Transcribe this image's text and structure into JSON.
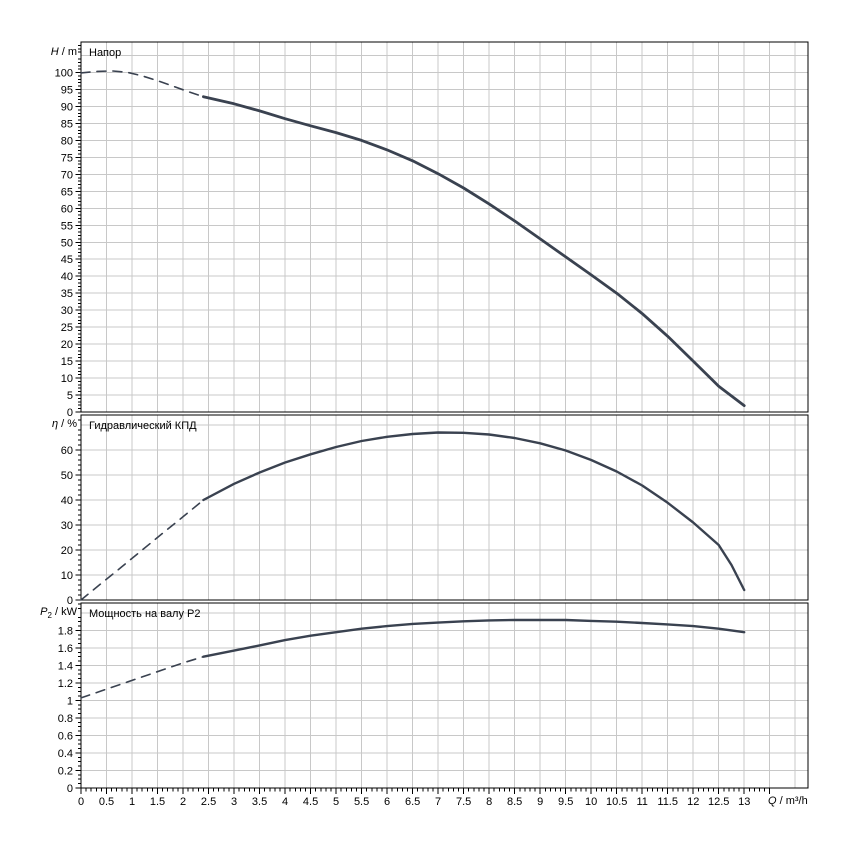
{
  "colors": {
    "background": "#ffffff",
    "curve": "#3a4250",
    "grid": "#c8c8c8",
    "axis": "#000000",
    "text": "#000000"
  },
  "chart_data": {
    "type": "line",
    "x_axis": {
      "label": "Q / m³/h",
      "label_parts": {
        "symbol": "Q",
        "rest": " / m³/h"
      },
      "xlim": [
        0,
        14.25
      ],
      "tick_step": 0.5,
      "minor_step": 0.1,
      "grid_step": 0.5,
      "tick_labels": [
        "0",
        "0.5",
        "1",
        "1.5",
        "2",
        "2.5",
        "3",
        "3.5",
        "4",
        "4.5",
        "5",
        "5.5",
        "6",
        "6.5",
        "7",
        "7.5",
        "8",
        "8.5",
        "9",
        "9.5",
        "10",
        "10.5",
        "11",
        "11.5",
        "12",
        "12.5",
        "13"
      ]
    },
    "panels": [
      {
        "id": "head",
        "title": "Напор",
        "y_axis": {
          "label": "H / m",
          "label_parts": {
            "symbol": "H",
            "rest": " / m"
          },
          "ylim": [
            0,
            109
          ],
          "tick_step": 5,
          "minor_step": 1,
          "tick_labels": [
            "0",
            "5",
            "10",
            "15",
            "20",
            "25",
            "30",
            "35",
            "40",
            "45",
            "50",
            "55",
            "60",
            "65",
            "70",
            "75",
            "80",
            "85",
            "90",
            "95",
            "100"
          ]
        },
        "series": [
          {
            "name": "dashed-section",
            "style": "dashed",
            "points": [
              [
                0,
                99.9
              ],
              [
                0.3,
                100.3
              ],
              [
                0.6,
                100.5
              ],
              [
                0.9,
                100.1
              ],
              [
                1.2,
                99.0
              ],
              [
                1.5,
                97.6
              ],
              [
                1.8,
                96.0
              ],
              [
                2.1,
                94.4
              ],
              [
                2.4,
                92.9
              ]
            ]
          },
          {
            "name": "solid-section",
            "style": "solid",
            "points": [
              [
                2.4,
                92.9
              ],
              [
                3,
                90.8
              ],
              [
                3.5,
                88.7
              ],
              [
                4,
                86.4
              ],
              [
                4.5,
                84.3
              ],
              [
                5,
                82.3
              ],
              [
                5.5,
                80.0
              ],
              [
                6,
                77.2
              ],
              [
                6.5,
                74.0
              ],
              [
                7,
                70.2
              ],
              [
                7.5,
                66.0
              ],
              [
                8,
                61.3
              ],
              [
                8.5,
                56.3
              ],
              [
                9,
                51.0
              ],
              [
                9.5,
                45.7
              ],
              [
                10,
                40.4
              ],
              [
                10.5,
                35.0
              ],
              [
                11,
                29.0
              ],
              [
                11.5,
                22.3
              ],
              [
                12,
                15.0
              ],
              [
                12.5,
                7.6
              ],
              [
                13,
                1.9
              ]
            ]
          }
        ]
      },
      {
        "id": "eff",
        "title": "Гидравлический КПД",
        "y_axis": {
          "label": "η / %",
          "label_parts": {
            "symbol": "η",
            "rest": " / %"
          },
          "ylim": [
            0,
            74
          ],
          "tick_step": 10,
          "minor_step": 2,
          "tick_labels": [
            "0",
            "10",
            "20",
            "30",
            "40",
            "50",
            "60"
          ]
        },
        "series": [
          {
            "name": "dashed-section",
            "style": "dashed",
            "points": [
              [
                0,
                0
              ],
              [
                0.4,
                6.7
              ],
              [
                0.8,
                13.3
              ],
              [
                1.2,
                20.0
              ],
              [
                1.6,
                26.7
              ],
              [
                2.0,
                33.3
              ],
              [
                2.4,
                40.0
              ]
            ]
          },
          {
            "name": "solid-section",
            "style": "solid",
            "points": [
              [
                2.4,
                40.0
              ],
              [
                3,
                46.5
              ],
              [
                3.5,
                51.0
              ],
              [
                4,
                55.0
              ],
              [
                4.5,
                58.3
              ],
              [
                5,
                61.2
              ],
              [
                5.5,
                63.6
              ],
              [
                6,
                65.3
              ],
              [
                6.5,
                66.4
              ],
              [
                7,
                67.0
              ],
              [
                7.5,
                66.9
              ],
              [
                8,
                66.2
              ],
              [
                8.5,
                64.8
              ],
              [
                9,
                62.7
              ],
              [
                9.5,
                59.8
              ],
              [
                10,
                56.0
              ],
              [
                10.5,
                51.4
              ],
              [
                11,
                45.8
              ],
              [
                11.5,
                38.9
              ],
              [
                12,
                31.0
              ],
              [
                12.5,
                22.0
              ],
              [
                12.75,
                14.0
              ],
              [
                13,
                4.0
              ]
            ]
          }
        ]
      },
      {
        "id": "power",
        "title": "Мощность на валу P2",
        "y_axis": {
          "label": "P2 / kW",
          "label_parts": {
            "symbol": "P",
            "sub": "2",
            "rest": " / kW"
          },
          "ylim": [
            0,
            2.114
          ],
          "tick_step": 0.2,
          "minor_step": 0.05,
          "tick_labels": [
            "0",
            "0.2",
            "0.4",
            "0.6",
            "0.8",
            "1",
            "1.2",
            "1.4",
            "1.6",
            "1.8"
          ]
        },
        "series": [
          {
            "name": "dashed-section",
            "style": "dashed",
            "points": [
              [
                0,
                1.03
              ],
              [
                0.4,
                1.11
              ],
              [
                0.8,
                1.19
              ],
              [
                1.2,
                1.27
              ],
              [
                1.6,
                1.35
              ],
              [
                2.0,
                1.43
              ],
              [
                2.4,
                1.5
              ]
            ]
          },
          {
            "name": "solid-section",
            "style": "solid",
            "points": [
              [
                2.4,
                1.5
              ],
              [
                3,
                1.57
              ],
              [
                3.5,
                1.63
              ],
              [
                4,
                1.69
              ],
              [
                4.5,
                1.74
              ],
              [
                5,
                1.78
              ],
              [
                5.5,
                1.82
              ],
              [
                6,
                1.85
              ],
              [
                6.5,
                1.875
              ],
              [
                7,
                1.89
              ],
              [
                7.5,
                1.905
              ],
              [
                8,
                1.915
              ],
              [
                8.5,
                1.92
              ],
              [
                9,
                1.92
              ],
              [
                9.5,
                1.92
              ],
              [
                10,
                1.91
              ],
              [
                10.5,
                1.9
              ],
              [
                11,
                1.885
              ],
              [
                11.5,
                1.87
              ],
              [
                12,
                1.85
              ],
              [
                12.5,
                1.82
              ],
              [
                13,
                1.78
              ]
            ]
          }
        ]
      }
    ]
  }
}
